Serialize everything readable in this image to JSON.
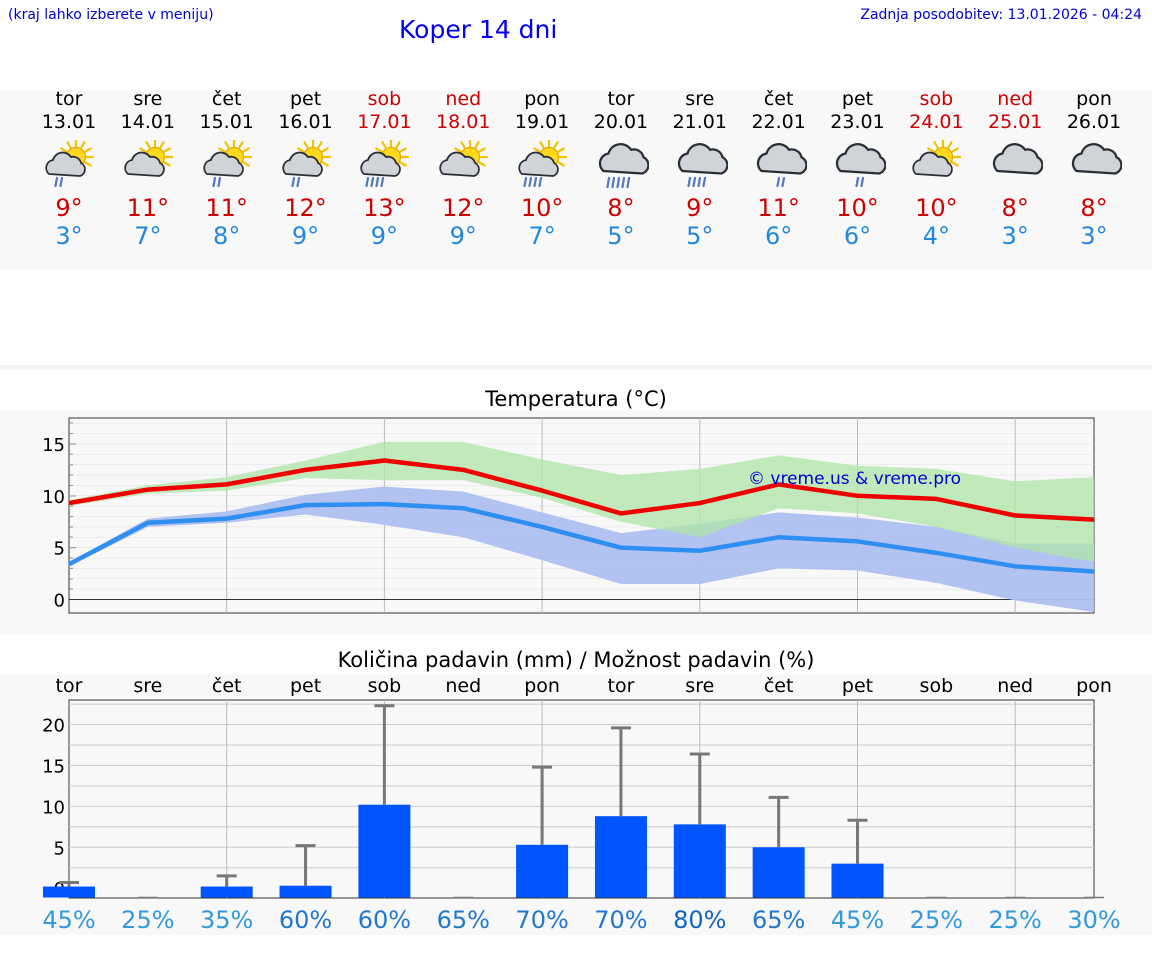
{
  "header": {
    "region_hint": "(kraj lahko izberete v meniju)",
    "title": "Koper 14 dni",
    "last_update": "Zadnja posodobitev: 13.01.2026 - 04:24"
  },
  "colors": {
    "max_temp": "#ee0000",
    "min_temp": "#2f8ff0",
    "max_band": "#aee6a8",
    "min_band": "#aebff0",
    "overlap_band": "#7cc4a6",
    "bar": "#0055ff",
    "whisker": "#777777",
    "weekend": "#cc0000"
  },
  "days": [
    {
      "name": "tor",
      "date": "13.01",
      "icon": "sun-cloud-light-rain-icon",
      "max": "9°",
      "min": "3°",
      "weekend": false
    },
    {
      "name": "sre",
      "date": "14.01",
      "icon": "sun-cloud-icon",
      "max": "11°",
      "min": "7°",
      "weekend": false
    },
    {
      "name": "čet",
      "date": "15.01",
      "icon": "sun-cloud-light-rain-icon",
      "max": "11°",
      "min": "8°",
      "weekend": false
    },
    {
      "name": "pet",
      "date": "16.01",
      "icon": "sun-cloud-light-rain-icon",
      "max": "12°",
      "min": "9°",
      "weekend": false
    },
    {
      "name": "sob",
      "date": "17.01",
      "icon": "sun-cloud-rain-icon",
      "max": "13°",
      "min": "9°",
      "weekend": true
    },
    {
      "name": "ned",
      "date": "18.01",
      "icon": "sun-cloud-icon",
      "max": "12°",
      "min": "9°",
      "weekend": true
    },
    {
      "name": "pon",
      "date": "19.01",
      "icon": "sun-cloud-rain-icon",
      "max": "10°",
      "min": "7°",
      "weekend": false
    },
    {
      "name": "tor",
      "date": "20.01",
      "icon": "cloud-heavy-rain-icon",
      "max": "8°",
      "min": "5°",
      "weekend": false
    },
    {
      "name": "sre",
      "date": "21.01",
      "icon": "cloud-rain-icon",
      "max": "9°",
      "min": "5°",
      "weekend": false
    },
    {
      "name": "čet",
      "date": "22.01",
      "icon": "cloud-light-rain-icon",
      "max": "11°",
      "min": "6°",
      "weekend": false
    },
    {
      "name": "pet",
      "date": "23.01",
      "icon": "cloud-light-rain-icon",
      "max": "10°",
      "min": "6°",
      "weekend": false
    },
    {
      "name": "sob",
      "date": "24.01",
      "icon": "sun-cloud-icon",
      "max": "10°",
      "min": "4°",
      "weekend": true
    },
    {
      "name": "ned",
      "date": "25.01",
      "icon": "cloud-icon",
      "max": "8°",
      "min": "3°",
      "weekend": true
    },
    {
      "name": "pon",
      "date": "26.01",
      "icon": "cloud-icon",
      "max": "8°",
      "min": "3°",
      "weekend": false
    }
  ],
  "chart_data": [
    {
      "type": "line",
      "title": "Temperatura (°C)",
      "ylim": [
        -1.3,
        17.5
      ],
      "yticks": [
        0,
        5,
        10,
        15
      ],
      "watermark": "© vreme.us & vreme.pro",
      "x": [
        0,
        1,
        2,
        3,
        4,
        5,
        6,
        7,
        8,
        9,
        10,
        11,
        12,
        13
      ],
      "series": [
        {
          "name": "max",
          "values": [
            9.3,
            10.6,
            11.1,
            12.5,
            13.4,
            12.5,
            10.5,
            8.3,
            9.3,
            11.1,
            10.0,
            9.7,
            8.1,
            7.7
          ]
        },
        {
          "name": "min",
          "values": [
            3.4,
            7.4,
            7.8,
            9.1,
            9.2,
            8.8,
            7.0,
            5.0,
            4.7,
            6.0,
            5.6,
            4.5,
            3.2,
            2.7
          ]
        }
      ],
      "bands": [
        {
          "name": "max_range",
          "low": [
            9.0,
            10.2,
            10.5,
            11.7,
            11.5,
            11.5,
            9.8,
            7.5,
            6.0,
            8.8,
            8.3,
            7.0,
            5.0,
            3.6
          ],
          "high": [
            9.6,
            11.0,
            11.8,
            13.4,
            15.2,
            15.2,
            13.5,
            12.0,
            12.6,
            13.9,
            12.9,
            12.6,
            11.4,
            11.8
          ]
        },
        {
          "name": "min_range",
          "low": [
            3.2,
            7.0,
            7.4,
            8.2,
            7.2,
            6.0,
            3.8,
            1.5,
            1.5,
            3.0,
            2.8,
            1.6,
            -0.1,
            -1.2
          ],
          "high": [
            3.6,
            7.8,
            8.5,
            10.1,
            10.9,
            10.4,
            8.4,
            6.4,
            7.3,
            8.4,
            7.9,
            7.0,
            5.4,
            5.4
          ]
        }
      ]
    },
    {
      "type": "bar",
      "title": "Količina padavin (mm) / Možnost padavin (%)",
      "categories": [
        "tor",
        "sre",
        "čet",
        "pet",
        "sob",
        "ned",
        "pon",
        "tor",
        "sre",
        "čet",
        "pet",
        "sob",
        "ned",
        "pon"
      ],
      "ylim": [
        -1.2,
        23.0
      ],
      "yticks": [
        0,
        5,
        10,
        15,
        20
      ],
      "values": [
        0.2,
        0.0,
        0.2,
        0.3,
        10.2,
        0.0,
        5.3,
        8.8,
        7.8,
        5.0,
        3.0,
        0.0,
        0.0,
        0.0
      ],
      "error_max": [
        0.7,
        0.0,
        1.5,
        5.2,
        22.3,
        0.0,
        14.8,
        19.6,
        16.4,
        11.1,
        8.3,
        0.0,
        0.0,
        0.0
      ],
      "probability": [
        "45%",
        "25%",
        "35%",
        "60%",
        "60%",
        "65%",
        "70%",
        "70%",
        "80%",
        "65%",
        "45%",
        "25%",
        "25%",
        "30%"
      ]
    }
  ]
}
